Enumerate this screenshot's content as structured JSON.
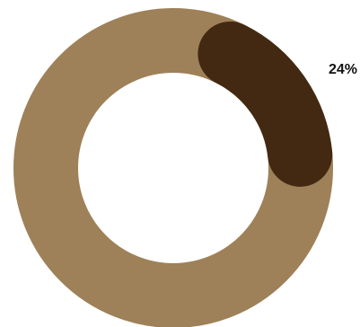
{
  "chart_data": {
    "type": "pie",
    "title": "",
    "series": [
      {
        "value": 24,
        "label": "24%",
        "color": "#432912"
      },
      {
        "value": 76,
        "label": "",
        "color": "#9e8158"
      }
    ],
    "donut": true,
    "rounded_caps": true,
    "label_position": "outside-right"
  }
}
